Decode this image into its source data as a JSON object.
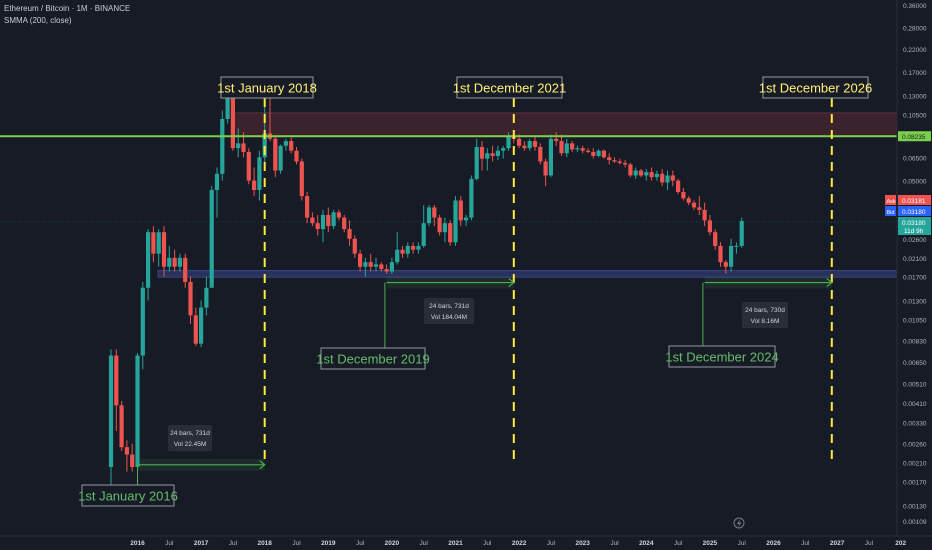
{
  "header": {
    "symbol_line": "Ethereum / Bitcoin · 1M · BINANCE",
    "indicator_line": "SMMA (200, close)"
  },
  "price_axis": {
    "ticks": [
      "0.36000",
      "0.28000",
      "0.22000",
      "0.17000",
      "0.13000",
      "0.10500",
      "0.08235",
      "0.06500",
      "0.05000",
      "0.03181",
      "0.03180",
      "0.02600",
      "0.02100",
      "0.01700",
      "0.01300",
      "0.01050",
      "0.00830",
      "0.00650",
      "0.00510",
      "0.00410",
      "0.00330",
      "0.00260",
      "0.00210",
      "0.00170",
      "0.00130",
      "0.00109"
    ],
    "ask_label": "Ask",
    "ask_value": "0.03181",
    "bid_label": "Bid",
    "bid_value": "0.03180",
    "last_value": "0.03180",
    "countdown": "11d 9h",
    "line_value": "0.08235"
  },
  "time_axis": {
    "labels": [
      "2016",
      "Jul",
      "2017",
      "Jul",
      "2018",
      "Jul",
      "2019",
      "Jul",
      "2020",
      "Jul",
      "2021",
      "Jul",
      "2022",
      "Jul",
      "2023",
      "Jul",
      "2024",
      "Jul",
      "2025",
      "Jul",
      "2026",
      "Jul",
      "2027",
      "Jul",
      "202"
    ]
  },
  "colors": {
    "background": "#171b26",
    "up": "#26a69a",
    "down": "#ef5350",
    "hline": "#7ad04a",
    "vline": "#ffeb3b",
    "measure": "#4caf50",
    "support_zone": "#2f3b70",
    "resistance_zone": "#5a2a33",
    "label_yellow": "#fff176",
    "label_green": "#66bb6a"
  },
  "annotations": {
    "labels": [
      {
        "text": "1st January 2018",
        "color": "yellow"
      },
      {
        "text": "1st December 2021",
        "color": "yellow"
      },
      {
        "text": "1st December 2026",
        "color": "yellow"
      },
      {
        "text": "1st January 2016",
        "color": "green"
      },
      {
        "text": "1st December 2019",
        "color": "green"
      },
      {
        "text": "1st December 2024",
        "color": "green"
      }
    ],
    "measures": [
      {
        "bars": "24 bars, 731d",
        "vol": "Vol 22.45M"
      },
      {
        "bars": "24 bars, 731d",
        "vol": "Vol 184.04M"
      },
      {
        "bars": "24 bars, 730d",
        "vol": "Vol 8.16M"
      }
    ]
  },
  "chart_data": {
    "type": "candlestick",
    "scale": "log",
    "interval": "1M",
    "ylim": [
      0.00105,
      0.37
    ],
    "candles": [
      {
        "date": "2015-08",
        "o": 0.002,
        "h": 0.0075,
        "l": 0.0016,
        "c": 0.007
      },
      {
        "date": "2015-09",
        "o": 0.007,
        "h": 0.0075,
        "l": 0.003,
        "c": 0.004
      },
      {
        "date": "2015-10",
        "o": 0.004,
        "h": 0.0042,
        "l": 0.0024,
        "c": 0.0025
      },
      {
        "date": "2015-11",
        "o": 0.0025,
        "h": 0.0027,
        "l": 0.0019,
        "c": 0.0023
      },
      {
        "date": "2015-12",
        "o": 0.0023,
        "h": 0.0026,
        "l": 0.0019,
        "c": 0.002
      },
      {
        "date": "2016-01",
        "o": 0.002,
        "h": 0.0072,
        "l": 0.0019,
        "c": 0.007
      },
      {
        "date": "2016-02",
        "o": 0.007,
        "h": 0.016,
        "l": 0.006,
        "c": 0.015
      },
      {
        "date": "2016-03",
        "o": 0.015,
        "h": 0.029,
        "l": 0.013,
        "c": 0.028
      },
      {
        "date": "2016-04",
        "o": 0.028,
        "h": 0.03,
        "l": 0.02,
        "c": 0.022
      },
      {
        "date": "2016-05",
        "o": 0.022,
        "h": 0.029,
        "l": 0.019,
        "c": 0.028
      },
      {
        "date": "2016-06",
        "o": 0.028,
        "h": 0.03,
        "l": 0.017,
        "c": 0.019
      },
      {
        "date": "2016-07",
        "o": 0.019,
        "h": 0.024,
        "l": 0.018,
        "c": 0.021
      },
      {
        "date": "2016-08",
        "o": 0.021,
        "h": 0.023,
        "l": 0.018,
        "c": 0.019
      },
      {
        "date": "2016-09",
        "o": 0.019,
        "h": 0.022,
        "l": 0.018,
        "c": 0.021
      },
      {
        "date": "2016-10",
        "o": 0.021,
        "h": 0.022,
        "l": 0.015,
        "c": 0.016
      },
      {
        "date": "2016-11",
        "o": 0.016,
        "h": 0.017,
        "l": 0.01,
        "c": 0.011
      },
      {
        "date": "2016-12",
        "o": 0.011,
        "h": 0.012,
        "l": 0.0078,
        "c": 0.008
      },
      {
        "date": "2017-01",
        "o": 0.008,
        "h": 0.013,
        "l": 0.0077,
        "c": 0.012
      },
      {
        "date": "2017-02",
        "o": 0.012,
        "h": 0.017,
        "l": 0.011,
        "c": 0.015
      },
      {
        "date": "2017-03",
        "o": 0.015,
        "h": 0.047,
        "l": 0.015,
        "c": 0.045
      },
      {
        "date": "2017-04",
        "o": 0.045,
        "h": 0.058,
        "l": 0.033,
        "c": 0.054
      },
      {
        "date": "2017-05",
        "o": 0.054,
        "h": 0.11,
        "l": 0.05,
        "c": 0.1
      },
      {
        "date": "2017-06",
        "o": 0.1,
        "h": 0.155,
        "l": 0.095,
        "c": 0.13
      },
      {
        "date": "2017-07",
        "o": 0.13,
        "h": 0.135,
        "l": 0.07,
        "c": 0.072
      },
      {
        "date": "2017-08",
        "o": 0.072,
        "h": 0.09,
        "l": 0.065,
        "c": 0.076
      },
      {
        "date": "2017-09",
        "o": 0.076,
        "h": 0.086,
        "l": 0.065,
        "c": 0.069
      },
      {
        "date": "2017-10",
        "o": 0.069,
        "h": 0.072,
        "l": 0.048,
        "c": 0.05
      },
      {
        "date": "2017-11",
        "o": 0.05,
        "h": 0.058,
        "l": 0.042,
        "c": 0.045
      },
      {
        "date": "2017-12",
        "o": 0.045,
        "h": 0.07,
        "l": 0.04,
        "c": 0.065
      },
      {
        "date": "2018-01",
        "o": 0.065,
        "h": 0.12,
        "l": 0.06,
        "c": 0.085
      },
      {
        "date": "2018-02",
        "o": 0.085,
        "h": 0.13,
        "l": 0.078,
        "c": 0.08
      },
      {
        "date": "2018-03",
        "o": 0.08,
        "h": 0.083,
        "l": 0.052,
        "c": 0.056
      },
      {
        "date": "2018-04",
        "o": 0.056,
        "h": 0.075,
        "l": 0.054,
        "c": 0.074
      },
      {
        "date": "2018-05",
        "o": 0.074,
        "h": 0.08,
        "l": 0.07,
        "c": 0.078
      },
      {
        "date": "2018-06",
        "o": 0.078,
        "h": 0.081,
        "l": 0.068,
        "c": 0.07
      },
      {
        "date": "2018-07",
        "o": 0.07,
        "h": 0.073,
        "l": 0.06,
        "c": 0.062
      },
      {
        "date": "2018-08",
        "o": 0.062,
        "h": 0.064,
        "l": 0.04,
        "c": 0.042
      },
      {
        "date": "2018-09",
        "o": 0.042,
        "h": 0.044,
        "l": 0.031,
        "c": 0.033
      },
      {
        "date": "2018-10",
        "o": 0.033,
        "h": 0.035,
        "l": 0.03,
        "c": 0.031
      },
      {
        "date": "2018-11",
        "o": 0.031,
        "h": 0.034,
        "l": 0.027,
        "c": 0.029
      },
      {
        "date": "2018-12",
        "o": 0.029,
        "h": 0.036,
        "l": 0.025,
        "c": 0.034
      },
      {
        "date": "2019-01",
        "o": 0.034,
        "h": 0.037,
        "l": 0.028,
        "c": 0.03
      },
      {
        "date": "2019-02",
        "o": 0.03,
        "h": 0.036,
        "l": 0.029,
        "c": 0.035
      },
      {
        "date": "2019-03",
        "o": 0.035,
        "h": 0.036,
        "l": 0.032,
        "c": 0.033
      },
      {
        "date": "2019-04",
        "o": 0.033,
        "h": 0.034,
        "l": 0.028,
        "c": 0.029
      },
      {
        "date": "2019-05",
        "o": 0.029,
        "h": 0.032,
        "l": 0.024,
        "c": 0.026
      },
      {
        "date": "2019-06",
        "o": 0.026,
        "h": 0.027,
        "l": 0.021,
        "c": 0.022
      },
      {
        "date": "2019-07",
        "o": 0.022,
        "h": 0.023,
        "l": 0.018,
        "c": 0.019
      },
      {
        "date": "2019-08",
        "o": 0.019,
        "h": 0.021,
        "l": 0.017,
        "c": 0.02
      },
      {
        "date": "2019-09",
        "o": 0.02,
        "h": 0.022,
        "l": 0.018,
        "c": 0.019
      },
      {
        "date": "2019-10",
        "o": 0.019,
        "h": 0.021,
        "l": 0.018,
        "c": 0.0195
      },
      {
        "date": "2019-11",
        "o": 0.0195,
        "h": 0.02,
        "l": 0.018,
        "c": 0.0185
      },
      {
        "date": "2019-12",
        "o": 0.0185,
        "h": 0.0195,
        "l": 0.0176,
        "c": 0.018
      },
      {
        "date": "2020-01",
        "o": 0.018,
        "h": 0.021,
        "l": 0.0175,
        "c": 0.02
      },
      {
        "date": "2020-02",
        "o": 0.02,
        "h": 0.028,
        "l": 0.0195,
        "c": 0.023
      },
      {
        "date": "2020-03",
        "o": 0.023,
        "h": 0.024,
        "l": 0.021,
        "c": 0.022
      },
      {
        "date": "2020-04",
        "o": 0.022,
        "h": 0.025,
        "l": 0.021,
        "c": 0.024
      },
      {
        "date": "2020-05",
        "o": 0.024,
        "h": 0.025,
        "l": 0.022,
        "c": 0.023
      },
      {
        "date": "2020-06",
        "o": 0.023,
        "h": 0.025,
        "l": 0.022,
        "c": 0.024
      },
      {
        "date": "2020-07",
        "o": 0.024,
        "h": 0.038,
        "l": 0.0235,
        "c": 0.031
      },
      {
        "date": "2020-08",
        "o": 0.031,
        "h": 0.038,
        "l": 0.03,
        "c": 0.037
      },
      {
        "date": "2020-09",
        "o": 0.037,
        "h": 0.038,
        "l": 0.03,
        "c": 0.033
      },
      {
        "date": "2020-10",
        "o": 0.033,
        "h": 0.034,
        "l": 0.027,
        "c": 0.028
      },
      {
        "date": "2020-11",
        "o": 0.028,
        "h": 0.033,
        "l": 0.025,
        "c": 0.031
      },
      {
        "date": "2020-12",
        "o": 0.031,
        "h": 0.032,
        "l": 0.024,
        "c": 0.025
      },
      {
        "date": "2021-01",
        "o": 0.025,
        "h": 0.042,
        "l": 0.024,
        "c": 0.04
      },
      {
        "date": "2021-02",
        "o": 0.04,
        "h": 0.042,
        "l": 0.03,
        "c": 0.032
      },
      {
        "date": "2021-03",
        "o": 0.032,
        "h": 0.034,
        "l": 0.03,
        "c": 0.033
      },
      {
        "date": "2021-04",
        "o": 0.033,
        "h": 0.053,
        "l": 0.032,
        "c": 0.051
      },
      {
        "date": "2021-05",
        "o": 0.051,
        "h": 0.08,
        "l": 0.05,
        "c": 0.073
      },
      {
        "date": "2021-06",
        "o": 0.073,
        "h": 0.078,
        "l": 0.056,
        "c": 0.064
      },
      {
        "date": "2021-07",
        "o": 0.064,
        "h": 0.072,
        "l": 0.056,
        "c": 0.068
      },
      {
        "date": "2021-08",
        "o": 0.068,
        "h": 0.074,
        "l": 0.062,
        "c": 0.066
      },
      {
        "date": "2021-09",
        "o": 0.066,
        "h": 0.074,
        "l": 0.063,
        "c": 0.07
      },
      {
        "date": "2021-10",
        "o": 0.07,
        "h": 0.074,
        "l": 0.064,
        "c": 0.072
      },
      {
        "date": "2021-11",
        "o": 0.072,
        "h": 0.086,
        "l": 0.07,
        "c": 0.082
      },
      {
        "date": "2021-12",
        "o": 0.082,
        "h": 0.088,
        "l": 0.076,
        "c": 0.08
      },
      {
        "date": "2022-01",
        "o": 0.08,
        "h": 0.084,
        "l": 0.072,
        "c": 0.074
      },
      {
        "date": "2022-02",
        "o": 0.074,
        "h": 0.078,
        "l": 0.07,
        "c": 0.072
      },
      {
        "date": "2022-03",
        "o": 0.072,
        "h": 0.08,
        "l": 0.07,
        "c": 0.078
      },
      {
        "date": "2022-04",
        "o": 0.078,
        "h": 0.082,
        "l": 0.07,
        "c": 0.073
      },
      {
        "date": "2022-05",
        "o": 0.073,
        "h": 0.076,
        "l": 0.06,
        "c": 0.062
      },
      {
        "date": "2022-06",
        "o": 0.062,
        "h": 0.064,
        "l": 0.047,
        "c": 0.053
      },
      {
        "date": "2022-07",
        "o": 0.053,
        "h": 0.084,
        "l": 0.052,
        "c": 0.08
      },
      {
        "date": "2022-08",
        "o": 0.08,
        "h": 0.086,
        "l": 0.074,
        "c": 0.078
      },
      {
        "date": "2022-09",
        "o": 0.078,
        "h": 0.084,
        "l": 0.066,
        "c": 0.068
      },
      {
        "date": "2022-10",
        "o": 0.068,
        "h": 0.08,
        "l": 0.065,
        "c": 0.076
      },
      {
        "date": "2022-11",
        "o": 0.076,
        "h": 0.078,
        "l": 0.069,
        "c": 0.071
      },
      {
        "date": "2022-12",
        "o": 0.071,
        "h": 0.074,
        "l": 0.069,
        "c": 0.072
      },
      {
        "date": "2023-01",
        "o": 0.072,
        "h": 0.074,
        "l": 0.068,
        "c": 0.07
      },
      {
        "date": "2023-02",
        "o": 0.07,
        "h": 0.072,
        "l": 0.068,
        "c": 0.069
      },
      {
        "date": "2023-03",
        "o": 0.069,
        "h": 0.072,
        "l": 0.064,
        "c": 0.066
      },
      {
        "date": "2023-04",
        "o": 0.066,
        "h": 0.071,
        "l": 0.065,
        "c": 0.07
      },
      {
        "date": "2023-05",
        "o": 0.07,
        "h": 0.071,
        "l": 0.064,
        "c": 0.065
      },
      {
        "date": "2023-06",
        "o": 0.065,
        "h": 0.068,
        "l": 0.06,
        "c": 0.063
      },
      {
        "date": "2023-07",
        "o": 0.063,
        "h": 0.065,
        "l": 0.061,
        "c": 0.062
      },
      {
        "date": "2023-08",
        "o": 0.062,
        "h": 0.064,
        "l": 0.06,
        "c": 0.061
      },
      {
        "date": "2023-09",
        "o": 0.061,
        "h": 0.063,
        "l": 0.058,
        "c": 0.06
      },
      {
        "date": "2023-10",
        "o": 0.06,
        "h": 0.061,
        "l": 0.052,
        "c": 0.053
      },
      {
        "date": "2023-11",
        "o": 0.053,
        "h": 0.058,
        "l": 0.051,
        "c": 0.056
      },
      {
        "date": "2023-12",
        "o": 0.056,
        "h": 0.057,
        "l": 0.052,
        "c": 0.053
      },
      {
        "date": "2024-01",
        "o": 0.053,
        "h": 0.057,
        "l": 0.05,
        "c": 0.055
      },
      {
        "date": "2024-02",
        "o": 0.055,
        "h": 0.058,
        "l": 0.05,
        "c": 0.052
      },
      {
        "date": "2024-03",
        "o": 0.052,
        "h": 0.056,
        "l": 0.05,
        "c": 0.054
      },
      {
        "date": "2024-04",
        "o": 0.054,
        "h": 0.057,
        "l": 0.047,
        "c": 0.049
      },
      {
        "date": "2024-05",
        "o": 0.049,
        "h": 0.056,
        "l": 0.045,
        "c": 0.053
      },
      {
        "date": "2024-06",
        "o": 0.053,
        "h": 0.056,
        "l": 0.047,
        "c": 0.05
      },
      {
        "date": "2024-07",
        "o": 0.05,
        "h": 0.051,
        "l": 0.043,
        "c": 0.044
      },
      {
        "date": "2024-08",
        "o": 0.044,
        "h": 0.046,
        "l": 0.04,
        "c": 0.041
      },
      {
        "date": "2024-09",
        "o": 0.041,
        "h": 0.042,
        "l": 0.038,
        "c": 0.039
      },
      {
        "date": "2024-10",
        "o": 0.039,
        "h": 0.04,
        "l": 0.036,
        "c": 0.037
      },
      {
        "date": "2024-11",
        "o": 0.037,
        "h": 0.042,
        "l": 0.034,
        "c": 0.036
      },
      {
        "date": "2024-12",
        "o": 0.036,
        "h": 0.039,
        "l": 0.03,
        "c": 0.032
      },
      {
        "date": "2025-01",
        "o": 0.032,
        "h": 0.034,
        "l": 0.027,
        "c": 0.028
      },
      {
        "date": "2025-02",
        "o": 0.028,
        "h": 0.029,
        "l": 0.023,
        "c": 0.024
      },
      {
        "date": "2025-03",
        "o": 0.024,
        "h": 0.025,
        "l": 0.019,
        "c": 0.02
      },
      {
        "date": "2025-04",
        "o": 0.02,
        "h": 0.0205,
        "l": 0.0176,
        "c": 0.019
      },
      {
        "date": "2025-05",
        "o": 0.019,
        "h": 0.026,
        "l": 0.018,
        "c": 0.024
      },
      {
        "date": "2025-06",
        "o": 0.024,
        "h": 0.025,
        "l": 0.022,
        "c": 0.024
      },
      {
        "date": "2025-07",
        "o": 0.024,
        "h": 0.033,
        "l": 0.0235,
        "c": 0.0318
      }
    ],
    "horizontal_line": 0.08235,
    "resistance_zone": [
      0.083,
      0.107
    ],
    "support_zone": [
      0.0169,
      0.0182
    ],
    "vertical_lines": [
      "2018-01",
      "2021-12",
      "2026-12"
    ],
    "measures": [
      {
        "from": "2016-01",
        "to": "2018-01",
        "price": 0.00205
      },
      {
        "from": "2019-12",
        "to": "2021-12",
        "price": 0.0159
      },
      {
        "from": "2024-12",
        "to": "2026-12",
        "price": 0.0159
      }
    ]
  }
}
